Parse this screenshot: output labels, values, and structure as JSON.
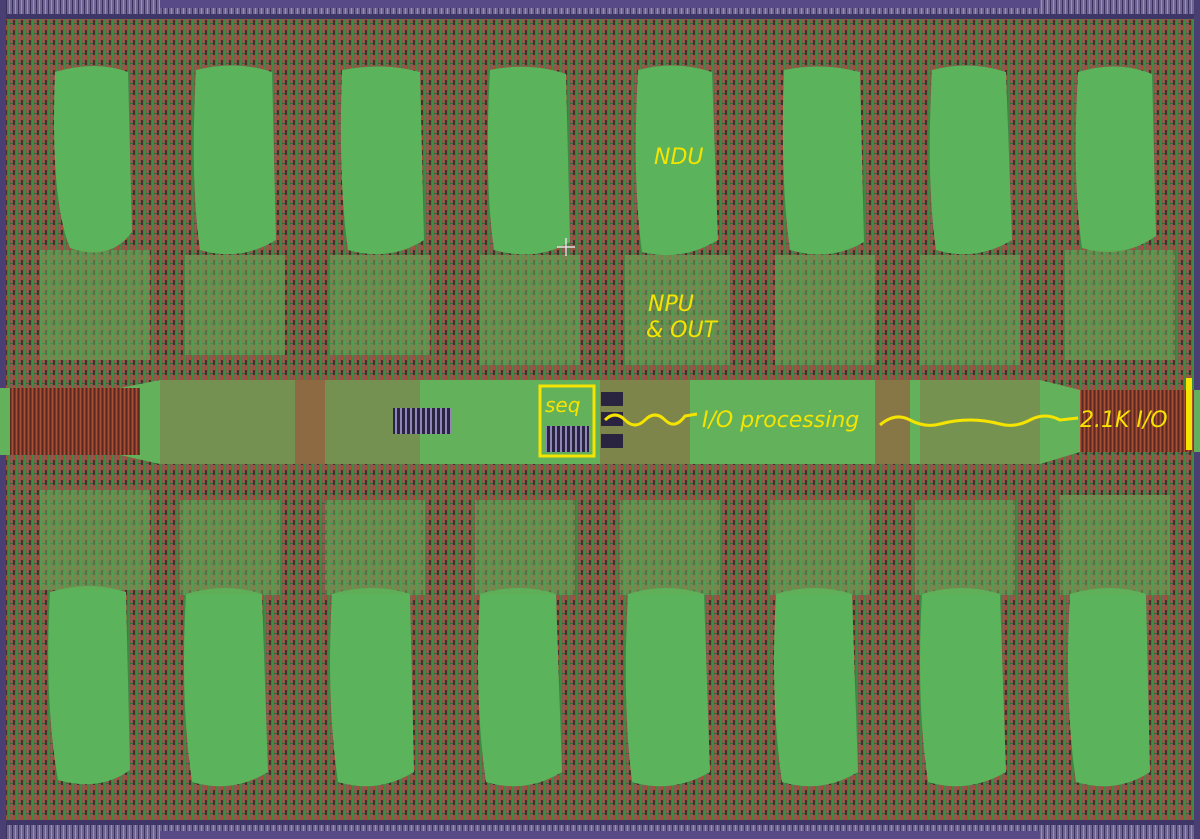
{
  "labels": {
    "ndu": "NDU",
    "npu_line1": "NPU",
    "npu_line2": "& OUT",
    "seq": "seq",
    "io_processing": "I/O processing",
    "io_count": "2.1K I/O"
  },
  "colors": {
    "annotation": "#f5e400",
    "background_logic": "#8a5a4a",
    "macro_green": "#5bb35c",
    "channel_green": "#63b15a",
    "bus_brown": "#8b3f2c",
    "pad_purple": "#7b6f98",
    "macro_block_dark": "#2b2540"
  }
}
